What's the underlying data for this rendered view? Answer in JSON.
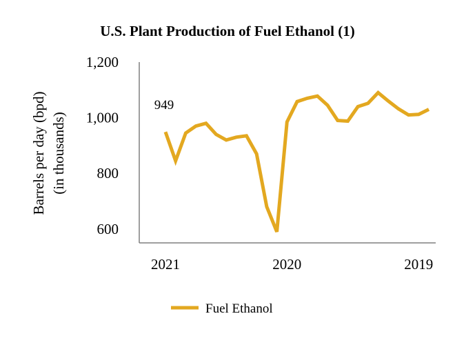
{
  "chart_data": {
    "type": "line",
    "title": "U.S. Plant Production of Fuel Ethanol (1)",
    "ylabel": [
      "Barrels per day (bpd)",
      "(in thousands)"
    ],
    "xlabel": "",
    "ylim": [
      550,
      1200
    ],
    "yticks": [
      600,
      800,
      "1,000",
      "1,200"
    ],
    "x_tick_labels": [
      {
        "label": "2021",
        "index": 0
      },
      {
        "label": "2020",
        "index": 12
      },
      {
        "label": "2019",
        "index": 25
      }
    ],
    "grid": false,
    "legend_position": "bottom",
    "series": [
      {
        "name": "Fuel Ethanol",
        "color": "#E3A820",
        "values": [
          949,
          845,
          945,
          970,
          980,
          940,
          920,
          930,
          935,
          870,
          680,
          590,
          985,
          1058,
          1070,
          1078,
          1045,
          990,
          988,
          1040,
          1052,
          1090,
          1060,
          1032,
          1010,
          1012,
          1030
        ]
      }
    ],
    "annotations": [
      {
        "text": "949",
        "index": 0
      }
    ]
  }
}
